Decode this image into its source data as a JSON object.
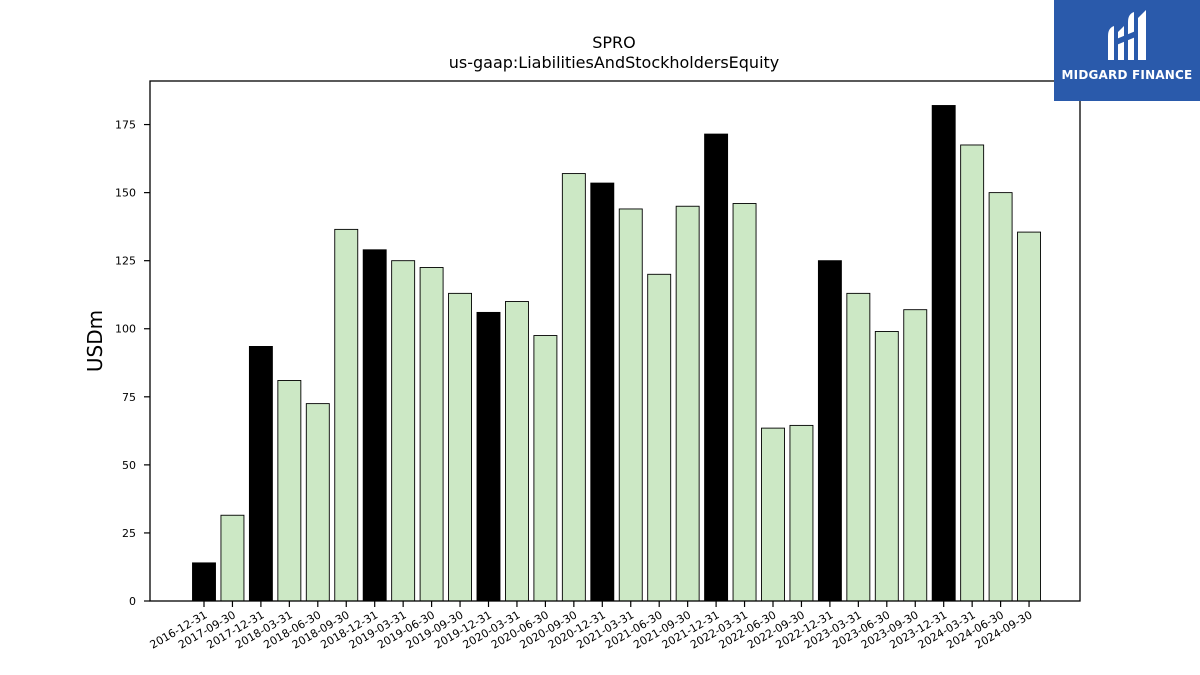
{
  "logo": {
    "text": "MIDGARD FINANCE",
    "background_color": "#2a5aab"
  },
  "chart_data": {
    "type": "bar",
    "title": "SPRO",
    "subtitle": "us-gaap:LiabilitiesAndStockholdersEquity",
    "xlabel": "",
    "ylabel": "USDm",
    "ylim": [
      0,
      191
    ],
    "yticks": [
      0,
      25,
      50,
      75,
      100,
      125,
      150,
      175
    ],
    "grid": false,
    "colors": {
      "annual": "#000000",
      "quarterly": "#cce8c5",
      "edge": "#000000"
    },
    "categories": [
      "2016-12-31",
      "2017-09-30",
      "2017-12-31",
      "2018-03-31",
      "2018-06-30",
      "2018-09-30",
      "2018-12-31",
      "2019-03-31",
      "2019-06-30",
      "2019-09-30",
      "2019-12-31",
      "2020-03-31",
      "2020-06-30",
      "2020-09-30",
      "2020-12-31",
      "2021-03-31",
      "2021-06-30",
      "2021-09-30",
      "2021-12-31",
      "2022-03-31",
      "2022-06-30",
      "2022-09-30",
      "2022-12-31",
      "2023-03-31",
      "2023-06-30",
      "2023-09-30",
      "2023-12-31",
      "2024-03-31",
      "2024-06-30",
      "2024-09-30"
    ],
    "values": [
      14,
      31.5,
      93.5,
      81,
      72.5,
      136.5,
      129,
      125,
      122.5,
      113,
      106,
      110,
      97.5,
      157,
      153.5,
      144,
      120,
      145,
      171.5,
      146,
      63.5,
      64.5,
      125,
      113,
      99,
      107,
      182,
      167.5,
      150,
      135.5
    ],
    "highlight": [
      true,
      false,
      true,
      false,
      false,
      false,
      true,
      false,
      false,
      false,
      true,
      false,
      false,
      false,
      true,
      false,
      false,
      false,
      true,
      false,
      false,
      false,
      true,
      false,
      false,
      false,
      true,
      false,
      false,
      false
    ]
  }
}
